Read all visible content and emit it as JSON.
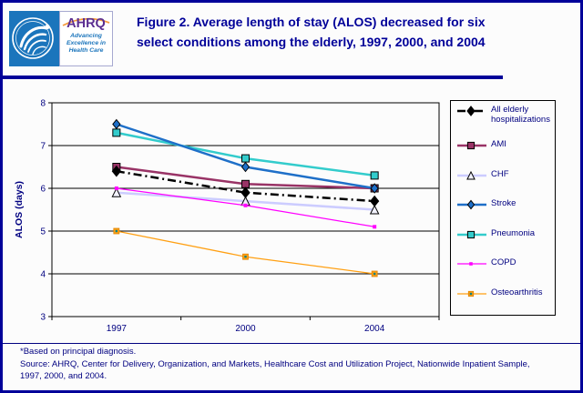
{
  "header": {
    "logo": {
      "ahrq_acronym": "AHRQ",
      "tagline_lines": [
        "Advancing",
        "Excellence in",
        "Health Care"
      ]
    },
    "title_lines": [
      "Figure 2. Average length of stay (ALOS) decreased for six",
      "select conditions among the elderly, 1997, 2000, and 2004"
    ]
  },
  "chart_data": {
    "type": "line",
    "title": "",
    "categories": [
      "1997",
      "2000",
      "2004"
    ],
    "series": [
      {
        "name": "All elderly hospitalizations",
        "values": [
          6.4,
          5.9,
          5.7
        ],
        "color": "#000000",
        "line_width": 2.5,
        "dash": "9,4,2,4",
        "marker": "diamond",
        "marker_size": 9,
        "marker_fill": "#000000",
        "marker_stroke": "#000000",
        "z": 7
      },
      {
        "name": "AMI",
        "values": [
          6.5,
          6.1,
          6.0
        ],
        "color": "#993366",
        "line_width": 2.5,
        "marker": "square",
        "marker_size": 8,
        "marker_fill": "#993366",
        "marker_stroke": "#000000",
        "z": 4
      },
      {
        "name": "CHF",
        "values": [
          5.9,
          5.7,
          5.5
        ],
        "color": "#CCCCFF",
        "line_width": 2.5,
        "marker": "triangle",
        "marker_size": 9,
        "marker_fill": "#F2F2FD",
        "marker_stroke": "#000000",
        "z": 2
      },
      {
        "name": "Stroke",
        "values": [
          7.5,
          6.5,
          6.0
        ],
        "color": "#1E6FC8",
        "line_width": 2.5,
        "marker": "diamond",
        "marker_size": 8,
        "marker_fill": "#1E6FC8",
        "marker_stroke": "#000000",
        "z": 6
      },
      {
        "name": "Pneumonia",
        "values": [
          7.3,
          6.7,
          6.3
        ],
        "color": "#33CCCC",
        "line_width": 2.5,
        "marker": "square",
        "marker_size": 8,
        "marker_fill": "#33CCCC",
        "marker_stroke": "#000000",
        "z": 5
      },
      {
        "name": "COPD",
        "values": [
          6.0,
          5.6,
          5.1
        ],
        "color": "#FF00FF",
        "line_width": 1.25,
        "marker": "square",
        "marker_size": 4,
        "marker_fill": "#FF00FF",
        "z": 3
      },
      {
        "name": "Osteoarthritis",
        "values": [
          5.0,
          4.4,
          4.0
        ],
        "color": "#FFA013",
        "line_width": 1.25,
        "marker": "square-dot",
        "marker_size": 6,
        "marker_fill": "#FFA013",
        "marker_stroke": "#E08400",
        "dot_color": "#0F8080",
        "z": 1
      }
    ],
    "xlabel": "",
    "ylabel": "ALOS (days)",
    "ylim": [
      3,
      8
    ],
    "yticks": [
      3,
      4,
      5,
      6,
      7,
      8
    ],
    "grid": true,
    "legend_position": "right"
  },
  "footnotes": {
    "note": "*Based on principal diagnosis.",
    "source_lines": [
      "Source: AHRQ, Center for Delivery, Organization, and Markets, Healthcare Cost and Utilization Project, Nationwide Inpatient Sample,",
      "1997, 2000, and 2004."
    ]
  },
  "colors": {
    "frame_border": "#000099",
    "title_text": "#000099",
    "body_text": "#000080",
    "hhs_blue": "#1B75BC",
    "ahrq_purple": "#5B2E91",
    "arc_orange": "#F59B3C"
  }
}
